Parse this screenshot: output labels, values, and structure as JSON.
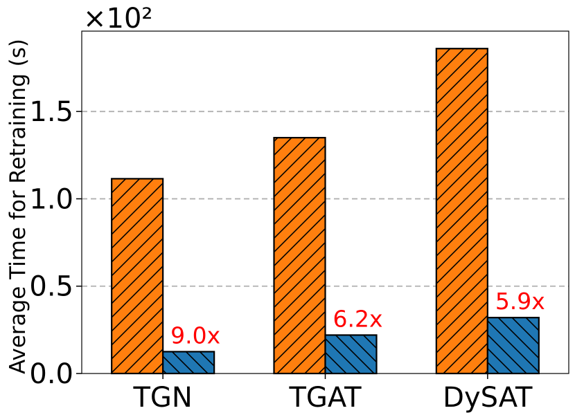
{
  "chart_data": {
    "type": "bar",
    "categories": [
      "TGN",
      "TGAT",
      "DySAT"
    ],
    "series": [
      {
        "values": [
          1.115,
          1.35,
          1.86
        ],
        "color": "#ff7f0e",
        "hatch": "forward-diagonal"
      },
      {
        "values": [
          0.125,
          0.22,
          0.32
        ],
        "color": "#1f77b4",
        "hatch": "backward-diagonal"
      }
    ],
    "annotations": [
      "9.0x",
      "6.2x",
      "5.9x"
    ],
    "annotation_color": "#ff0000",
    "ylabel": "Average Time for Retraining (s)",
    "xlabel": "",
    "title": "",
    "ylim": [
      0,
      1.96
    ],
    "yticks": [
      0.0,
      0.5,
      1.0,
      1.5
    ],
    "ytick_labels": [
      "0.0",
      "0.5",
      "1.0",
      "1.5"
    ],
    "offset_text": "×10²",
    "grid": "y-dashed"
  }
}
